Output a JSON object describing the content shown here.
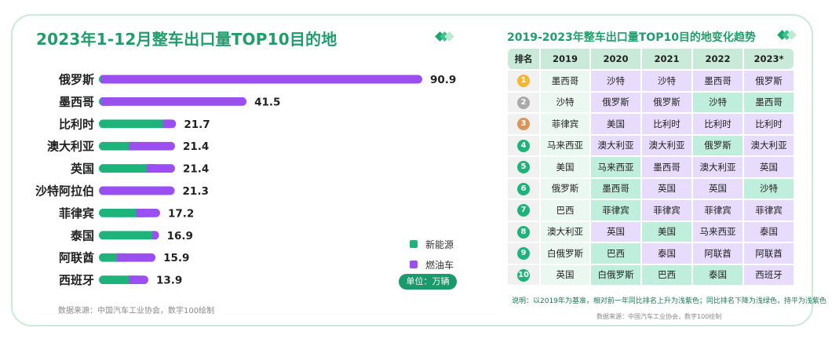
{
  "left": {
    "title": "2023年1-12月整车出口量TOP10目的地",
    "source": "数据来源：中国汽车工业协会，数字100绘制",
    "unit": "单位：万辆"
  },
  "chart_data": {
    "type": "bar",
    "orientation": "horizontal",
    "stacked": true,
    "title": "2023年1-12月整车出口量TOP10目的地",
    "unit": "单位：万辆",
    "categories": [
      "俄罗斯",
      "墨西哥",
      "比利时",
      "澳大利亚",
      "英国",
      "沙特阿拉伯",
      "菲律宾",
      "泰国",
      "阿联酋",
      "西班牙"
    ],
    "series": [
      {
        "name": "新能源",
        "color": "#1db37a",
        "values": [
          0.6,
          0.6,
          18.0,
          8.5,
          13.5,
          0.2,
          10.5,
          15.0,
          5.0,
          8.5
        ]
      },
      {
        "name": "燃油车",
        "color": "#9b4ff1",
        "values": [
          90.3,
          40.9,
          3.7,
          12.9,
          7.9,
          21.1,
          6.7,
          1.9,
          10.9,
          5.4
        ]
      }
    ],
    "totals": [
      "90.9",
      "41.5",
      "21.7",
      "21.4",
      "21.4",
      "21.3",
      "17.2",
      "16.9",
      "15.9",
      "13.9"
    ],
    "xlim": [
      0,
      90.9
    ],
    "legend_position": "bottom-right",
    "grid": false
  },
  "right": {
    "title": "2019-2023年整车出口量TOP10目的地变化趋势",
    "columns": [
      "排名",
      "2019",
      "2020",
      "2021",
      "2022",
      "2023*"
    ],
    "rank_colors": [
      "#f5b731",
      "#a9a9a9",
      "#d9955c",
      "#1db37a",
      "#1db37a",
      "#1db37a",
      "#1db37a",
      "#1db37a",
      "#1db37a",
      "#1db37a"
    ],
    "rows": [
      {
        "rank": "1",
        "cells": [
          {
            "v": "墨西哥",
            "t": "base"
          },
          {
            "v": "沙特",
            "t": "up"
          },
          {
            "v": "沙特",
            "t": "up"
          },
          {
            "v": "墨西哥",
            "t": "up"
          },
          {
            "v": "俄罗斯",
            "t": "up"
          }
        ]
      },
      {
        "rank": "2",
        "cells": [
          {
            "v": "沙特",
            "t": "base"
          },
          {
            "v": "俄罗斯",
            "t": "up"
          },
          {
            "v": "俄罗斯",
            "t": "up"
          },
          {
            "v": "沙特",
            "t": "down"
          },
          {
            "v": "墨西哥",
            "t": "down"
          }
        ]
      },
      {
        "rank": "3",
        "cells": [
          {
            "v": "菲律宾",
            "t": "base"
          },
          {
            "v": "美国",
            "t": "up"
          },
          {
            "v": "比利时",
            "t": "up"
          },
          {
            "v": "比利时",
            "t": "up"
          },
          {
            "v": "比利时",
            "t": "up"
          }
        ]
      },
      {
        "rank": "4",
        "cells": [
          {
            "v": "马来西亚",
            "t": "base"
          },
          {
            "v": "澳大利亚",
            "t": "up"
          },
          {
            "v": "澳大利亚",
            "t": "up"
          },
          {
            "v": "俄罗斯",
            "t": "down"
          },
          {
            "v": "澳大利亚",
            "t": "up"
          }
        ]
      },
      {
        "rank": "5",
        "cells": [
          {
            "v": "美国",
            "t": "base"
          },
          {
            "v": "马来西亚",
            "t": "down"
          },
          {
            "v": "墨西哥",
            "t": "up"
          },
          {
            "v": "澳大利亚",
            "t": "up"
          },
          {
            "v": "英国",
            "t": "up"
          }
        ]
      },
      {
        "rank": "6",
        "cells": [
          {
            "v": "俄罗斯",
            "t": "base"
          },
          {
            "v": "墨西哥",
            "t": "down"
          },
          {
            "v": "英国",
            "t": "up"
          },
          {
            "v": "英国",
            "t": "up"
          },
          {
            "v": "沙特",
            "t": "down"
          }
        ]
      },
      {
        "rank": "7",
        "cells": [
          {
            "v": "巴西",
            "t": "base"
          },
          {
            "v": "菲律宾",
            "t": "down"
          },
          {
            "v": "菲律宾",
            "t": "up"
          },
          {
            "v": "菲律宾",
            "t": "up"
          },
          {
            "v": "菲律宾",
            "t": "up"
          }
        ]
      },
      {
        "rank": "8",
        "cells": [
          {
            "v": "澳大利亚",
            "t": "base"
          },
          {
            "v": "英国",
            "t": "up"
          },
          {
            "v": "美国",
            "t": "down"
          },
          {
            "v": "马来西亚",
            "t": "up"
          },
          {
            "v": "泰国",
            "t": "up"
          }
        ]
      },
      {
        "rank": "9",
        "cells": [
          {
            "v": "白俄罗斯",
            "t": "base"
          },
          {
            "v": "巴西",
            "t": "down"
          },
          {
            "v": "泰国",
            "t": "up"
          },
          {
            "v": "阿联酋",
            "t": "up"
          },
          {
            "v": "阿联酋",
            "t": "up"
          }
        ]
      },
      {
        "rank": "10",
        "cells": [
          {
            "v": "英国",
            "t": "base"
          },
          {
            "v": "白俄罗斯",
            "t": "down"
          },
          {
            "v": "巴西",
            "t": "down"
          },
          {
            "v": "泰国",
            "t": "down"
          },
          {
            "v": "西班牙",
            "t": "up"
          }
        ]
      }
    ],
    "note": "说明：以2019年为基准，相对前一年同比排名上升为浅紫色；同比排名下降为浅绿色，持平为浅紫色",
    "source": "数据来源：中国汽车工业协会，数字100绘制"
  }
}
